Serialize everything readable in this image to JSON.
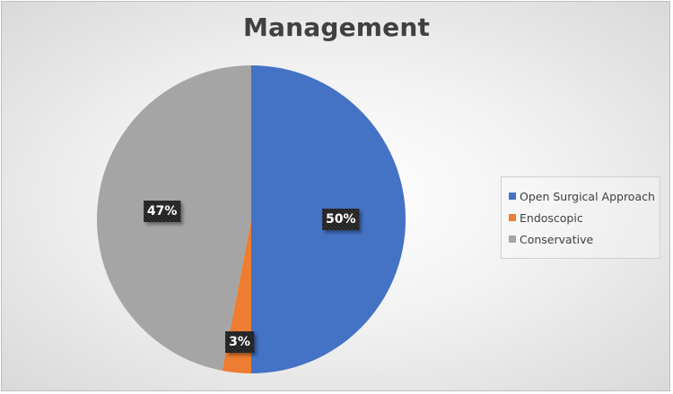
{
  "chart_data": {
    "type": "pie",
    "title": "Management",
    "categories": [
      "Open Surgical Approach",
      "Endoscopic",
      "Conservative"
    ],
    "values": [
      50,
      3,
      47
    ],
    "labels": [
      "50%",
      "3%",
      "47%"
    ],
    "colors": [
      "#4472c4",
      "#ed7d31",
      "#a5a5a5"
    ],
    "start_angle_deg": 0,
    "direction": "clockwise",
    "legend_position": "right"
  }
}
